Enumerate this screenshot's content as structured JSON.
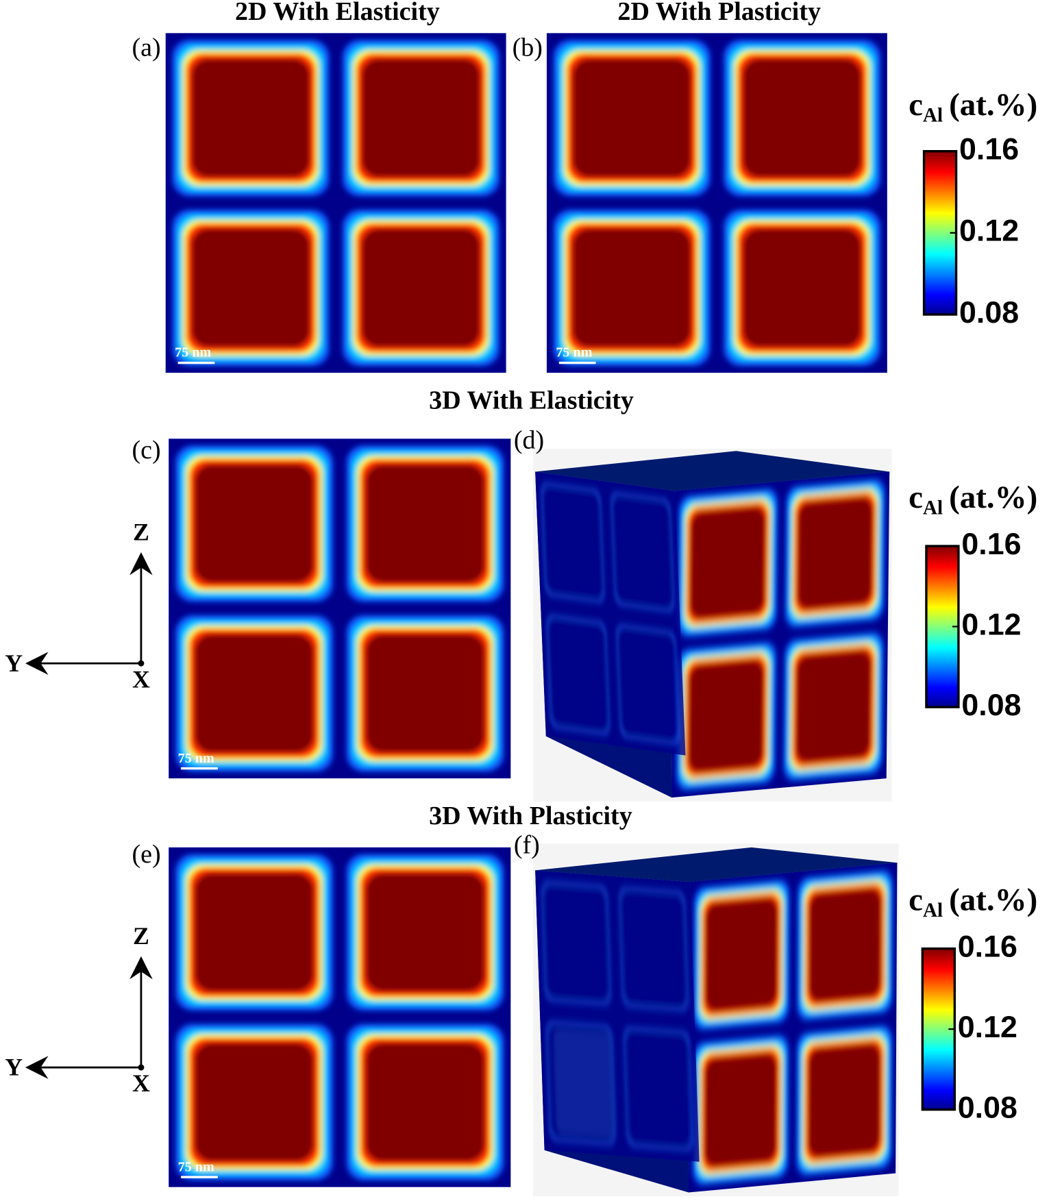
{
  "titles": [
    "2D With Elasticity",
    "2D With Plasticity",
    "3D With Elasticity",
    "3D With Plasticity"
  ],
  "panels": [
    {
      "label": "(a)",
      "scale_bar": "75 nm"
    },
    {
      "label": "(b)",
      "scale_bar": "75 nm"
    },
    {
      "label": "(c)",
      "scale_bar": "75 nm"
    },
    {
      "label": "(d)"
    },
    {
      "label": "(e)",
      "scale_bar": "75 nm"
    },
    {
      "label": "(f)"
    }
  ],
  "axes_labels": [
    {
      "z": "Z",
      "y": "Y",
      "x": "X"
    },
    {
      "z": "Z",
      "y": "Y",
      "x": "X"
    }
  ],
  "colorbars": [
    {
      "symbol": "c",
      "subscript": "Al",
      "unit": "(at.%)",
      "ticks": [
        0.16,
        0.12,
        0.08
      ]
    },
    {
      "symbol": "c",
      "subscript": "Al",
      "unit": "(at.%)",
      "ticks": [
        0.16,
        0.12,
        0.08
      ]
    },
    {
      "symbol": "c",
      "subscript": "Al",
      "unit": "(at.%)",
      "ticks": [
        0.16,
        0.12,
        0.08
      ]
    }
  ]
}
